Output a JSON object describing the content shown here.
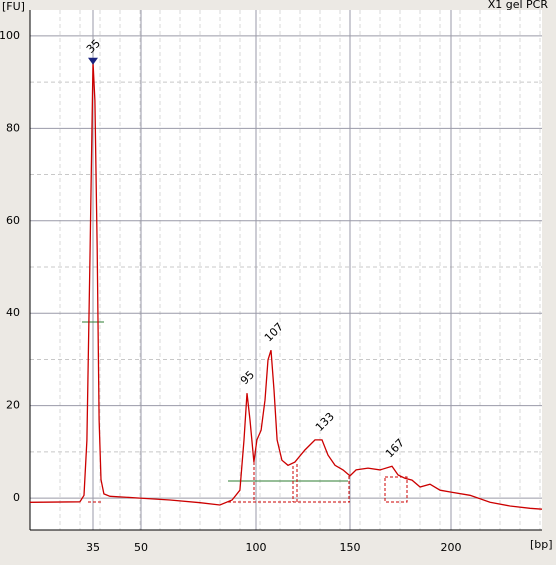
{
  "chart_data": {
    "type": "line",
    "title": "X1 gel PCR",
    "y_label": "[FU]",
    "x_label": "[bp]",
    "color": "#cc0000",
    "grid": true,
    "ylim": [
      -6.9,
      105.6
    ],
    "yticks": [
      0,
      20,
      40,
      60,
      80,
      100
    ],
    "xlim": [
      15.3,
      245
    ],
    "xticks": [
      35,
      50,
      100,
      150,
      200
    ],
    "x": [
      15.3,
      30.9,
      32.2,
      33.1,
      34.1,
      35,
      35.6,
      36.3,
      36.9,
      37.5,
      38.4,
      40.3,
      49.7,
      62.6,
      75.7,
      84.3,
      89.6,
      93,
      94.8,
      96.1,
      97.4,
      99.1,
      100.5,
      102.7,
      104.8,
      106.4,
      108,
      109.6,
      111.2,
      113.8,
      117,
      120.7,
      126,
      131.4,
      135.1,
      138.3,
      142,
      146.3,
      150,
      153,
      158.9,
      164.9,
      170.8,
      173.8,
      177.2,
      180.7,
      184.7,
      189.6,
      194.6,
      200,
      209.4,
      219.3,
      229.2,
      239.1,
      245
    ],
    "values": [
      -0.9,
      -0.8,
      0.6,
      12.5,
      53.7,
      94.4,
      86,
      53.7,
      17,
      4,
      0.9,
      0.4,
      0,
      -0.4,
      -1,
      -1.5,
      -0.4,
      1.7,
      12.6,
      22.7,
      16.9,
      7.8,
      12.6,
      14.7,
      21.2,
      29.9,
      32,
      23.4,
      12.6,
      8.2,
      7.1,
      7.8,
      10.4,
      12.6,
      12.6,
      9.3,
      7.1,
      6.1,
      4.8,
      6.1,
      6.5,
      6.1,
      6.9,
      5,
      4.3,
      3.9,
      2.4,
      3,
      1.7,
      1.3,
      0.6,
      -0.9,
      -1.7,
      -2.2,
      -2.4
    ],
    "peaks": [
      {
        "label": "35",
        "x": 35,
        "y": 94.4,
        "color": "#1a8a1a"
      },
      {
        "label": "95",
        "x": 96.1,
        "y": 22.7,
        "color": "#000000"
      },
      {
        "label": "107",
        "x": 108,
        "y": 32,
        "color": "#000000"
      },
      {
        "label": "133",
        "x": 135.1,
        "y": 12.6,
        "color": "#000000"
      },
      {
        "label": "167",
        "x": 170.8,
        "y": 6.9,
        "color": "#000000"
      }
    ]
  }
}
